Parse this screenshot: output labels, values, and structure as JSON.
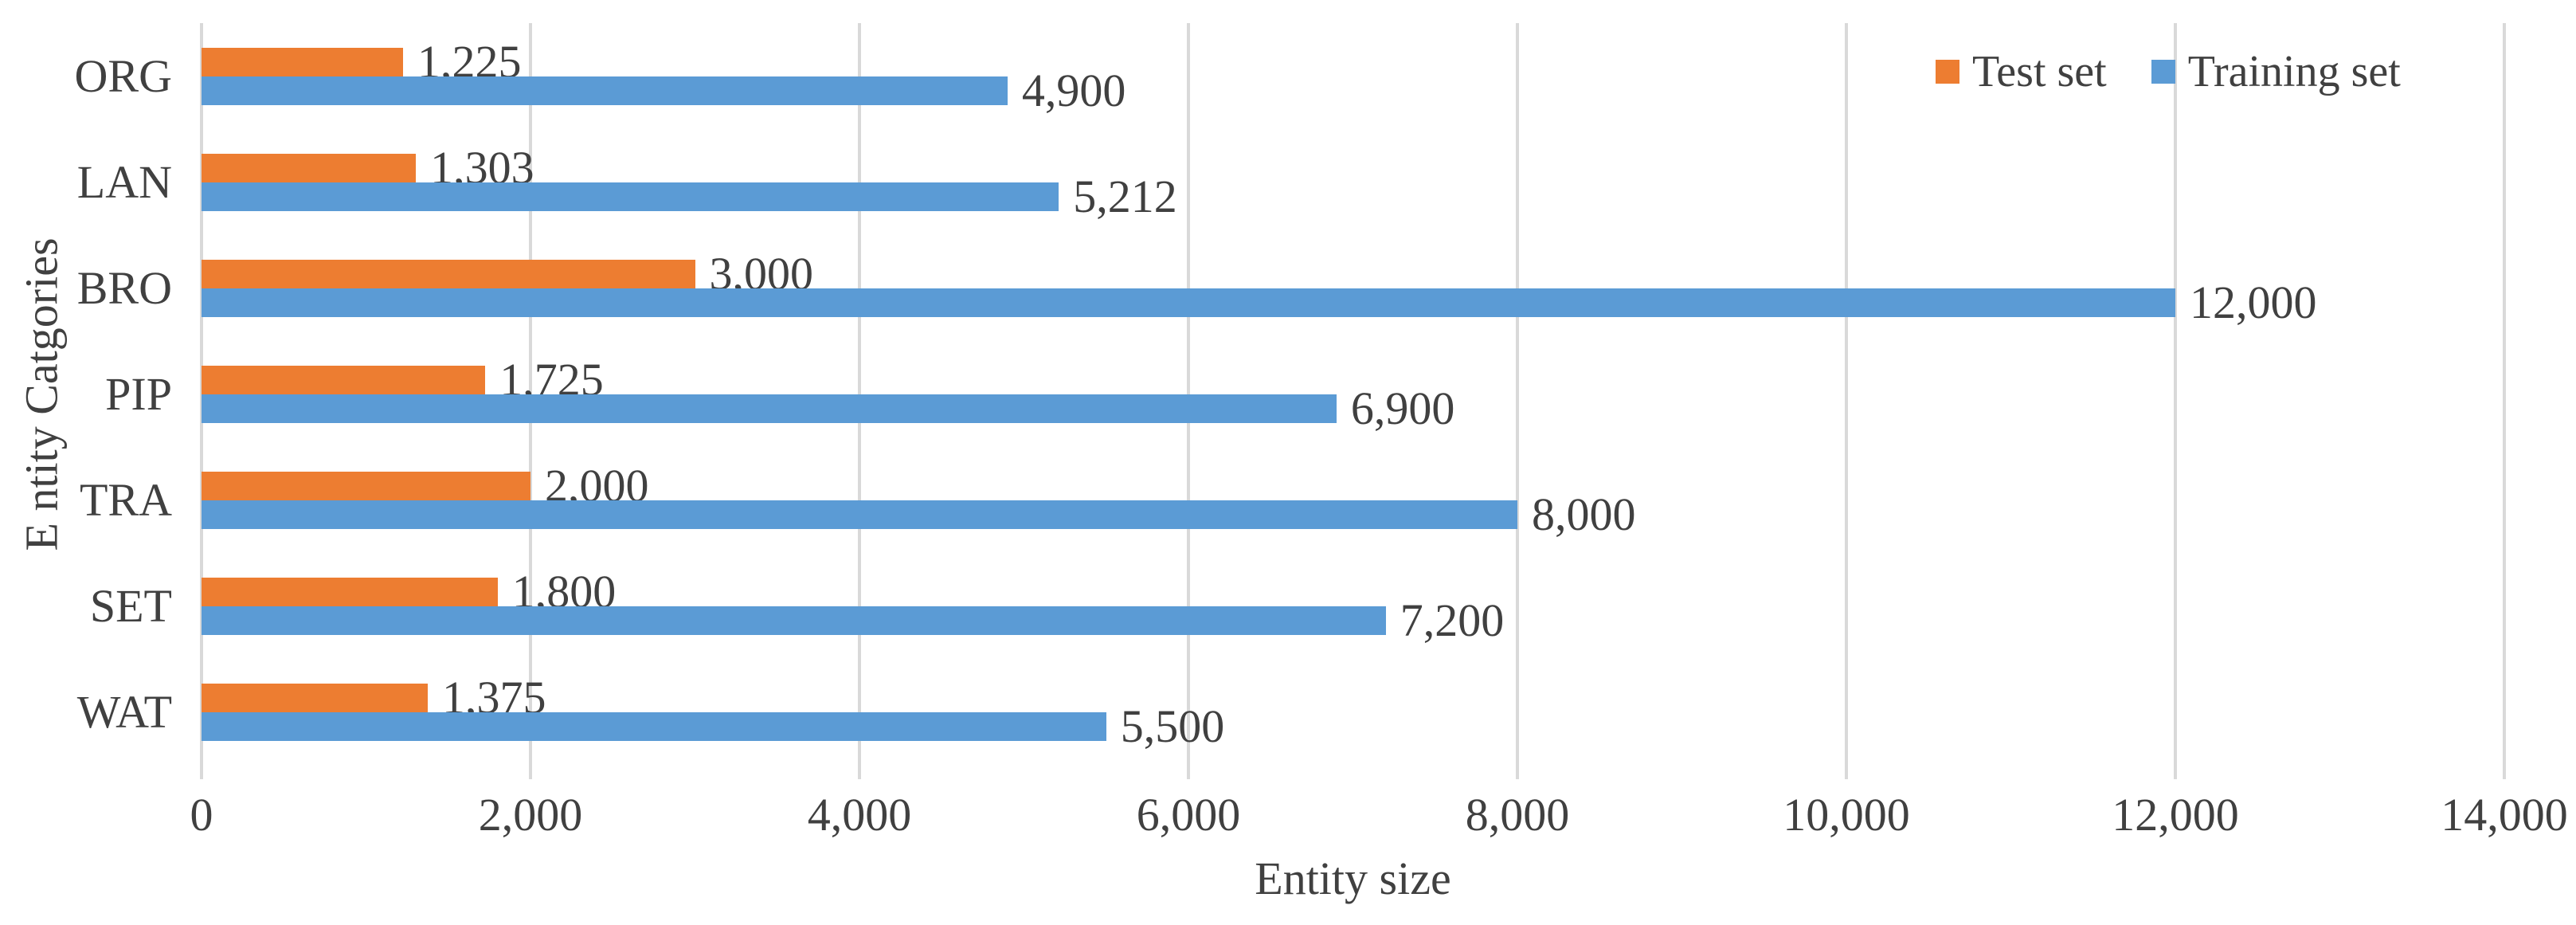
{
  "chart_data": {
    "type": "bar",
    "orientation": "horizontal",
    "title": "",
    "xlabel": "Entity size",
    "ylabel": "E ntity Catgories",
    "categories": [
      "ORG",
      "LAN",
      "BRO",
      "PIP",
      "TRA",
      "SET",
      "WAT"
    ],
    "series": [
      {
        "name": "Test set",
        "color": "#ED7D31",
        "values": [
          1225,
          1303,
          3000,
          1725,
          2000,
          1800,
          1375
        ],
        "labels": [
          "1,225",
          "1,303",
          "3,000",
          "1,725",
          "2,000",
          "1,800",
          "1,375"
        ]
      },
      {
        "name": "Training set",
        "color": "#5B9BD5",
        "values": [
          4900,
          5212,
          12000,
          6900,
          8000,
          7200,
          5500
        ],
        "labels": [
          "4,900",
          "5,212",
          "12,000",
          "6,900",
          "8,000",
          "7,200",
          "5,500"
        ]
      }
    ],
    "xlim": [
      0,
      14000
    ],
    "x_ticks": [
      0,
      2000,
      4000,
      6000,
      8000,
      10000,
      12000,
      14000
    ],
    "x_tick_labels": [
      "0",
      "2,000",
      "4,000",
      "6,000",
      "8,000",
      "10,000",
      "12,000",
      "14,000"
    ],
    "grid": true,
    "gridline_color": "#D9D9D9",
    "text_color": "#404040",
    "legend": {
      "position": "top-right",
      "entries": [
        {
          "label": "Test set",
          "color": "#ED7D31"
        },
        {
          "label": "Training set",
          "color": "#5B9BD5"
        }
      ]
    }
  }
}
